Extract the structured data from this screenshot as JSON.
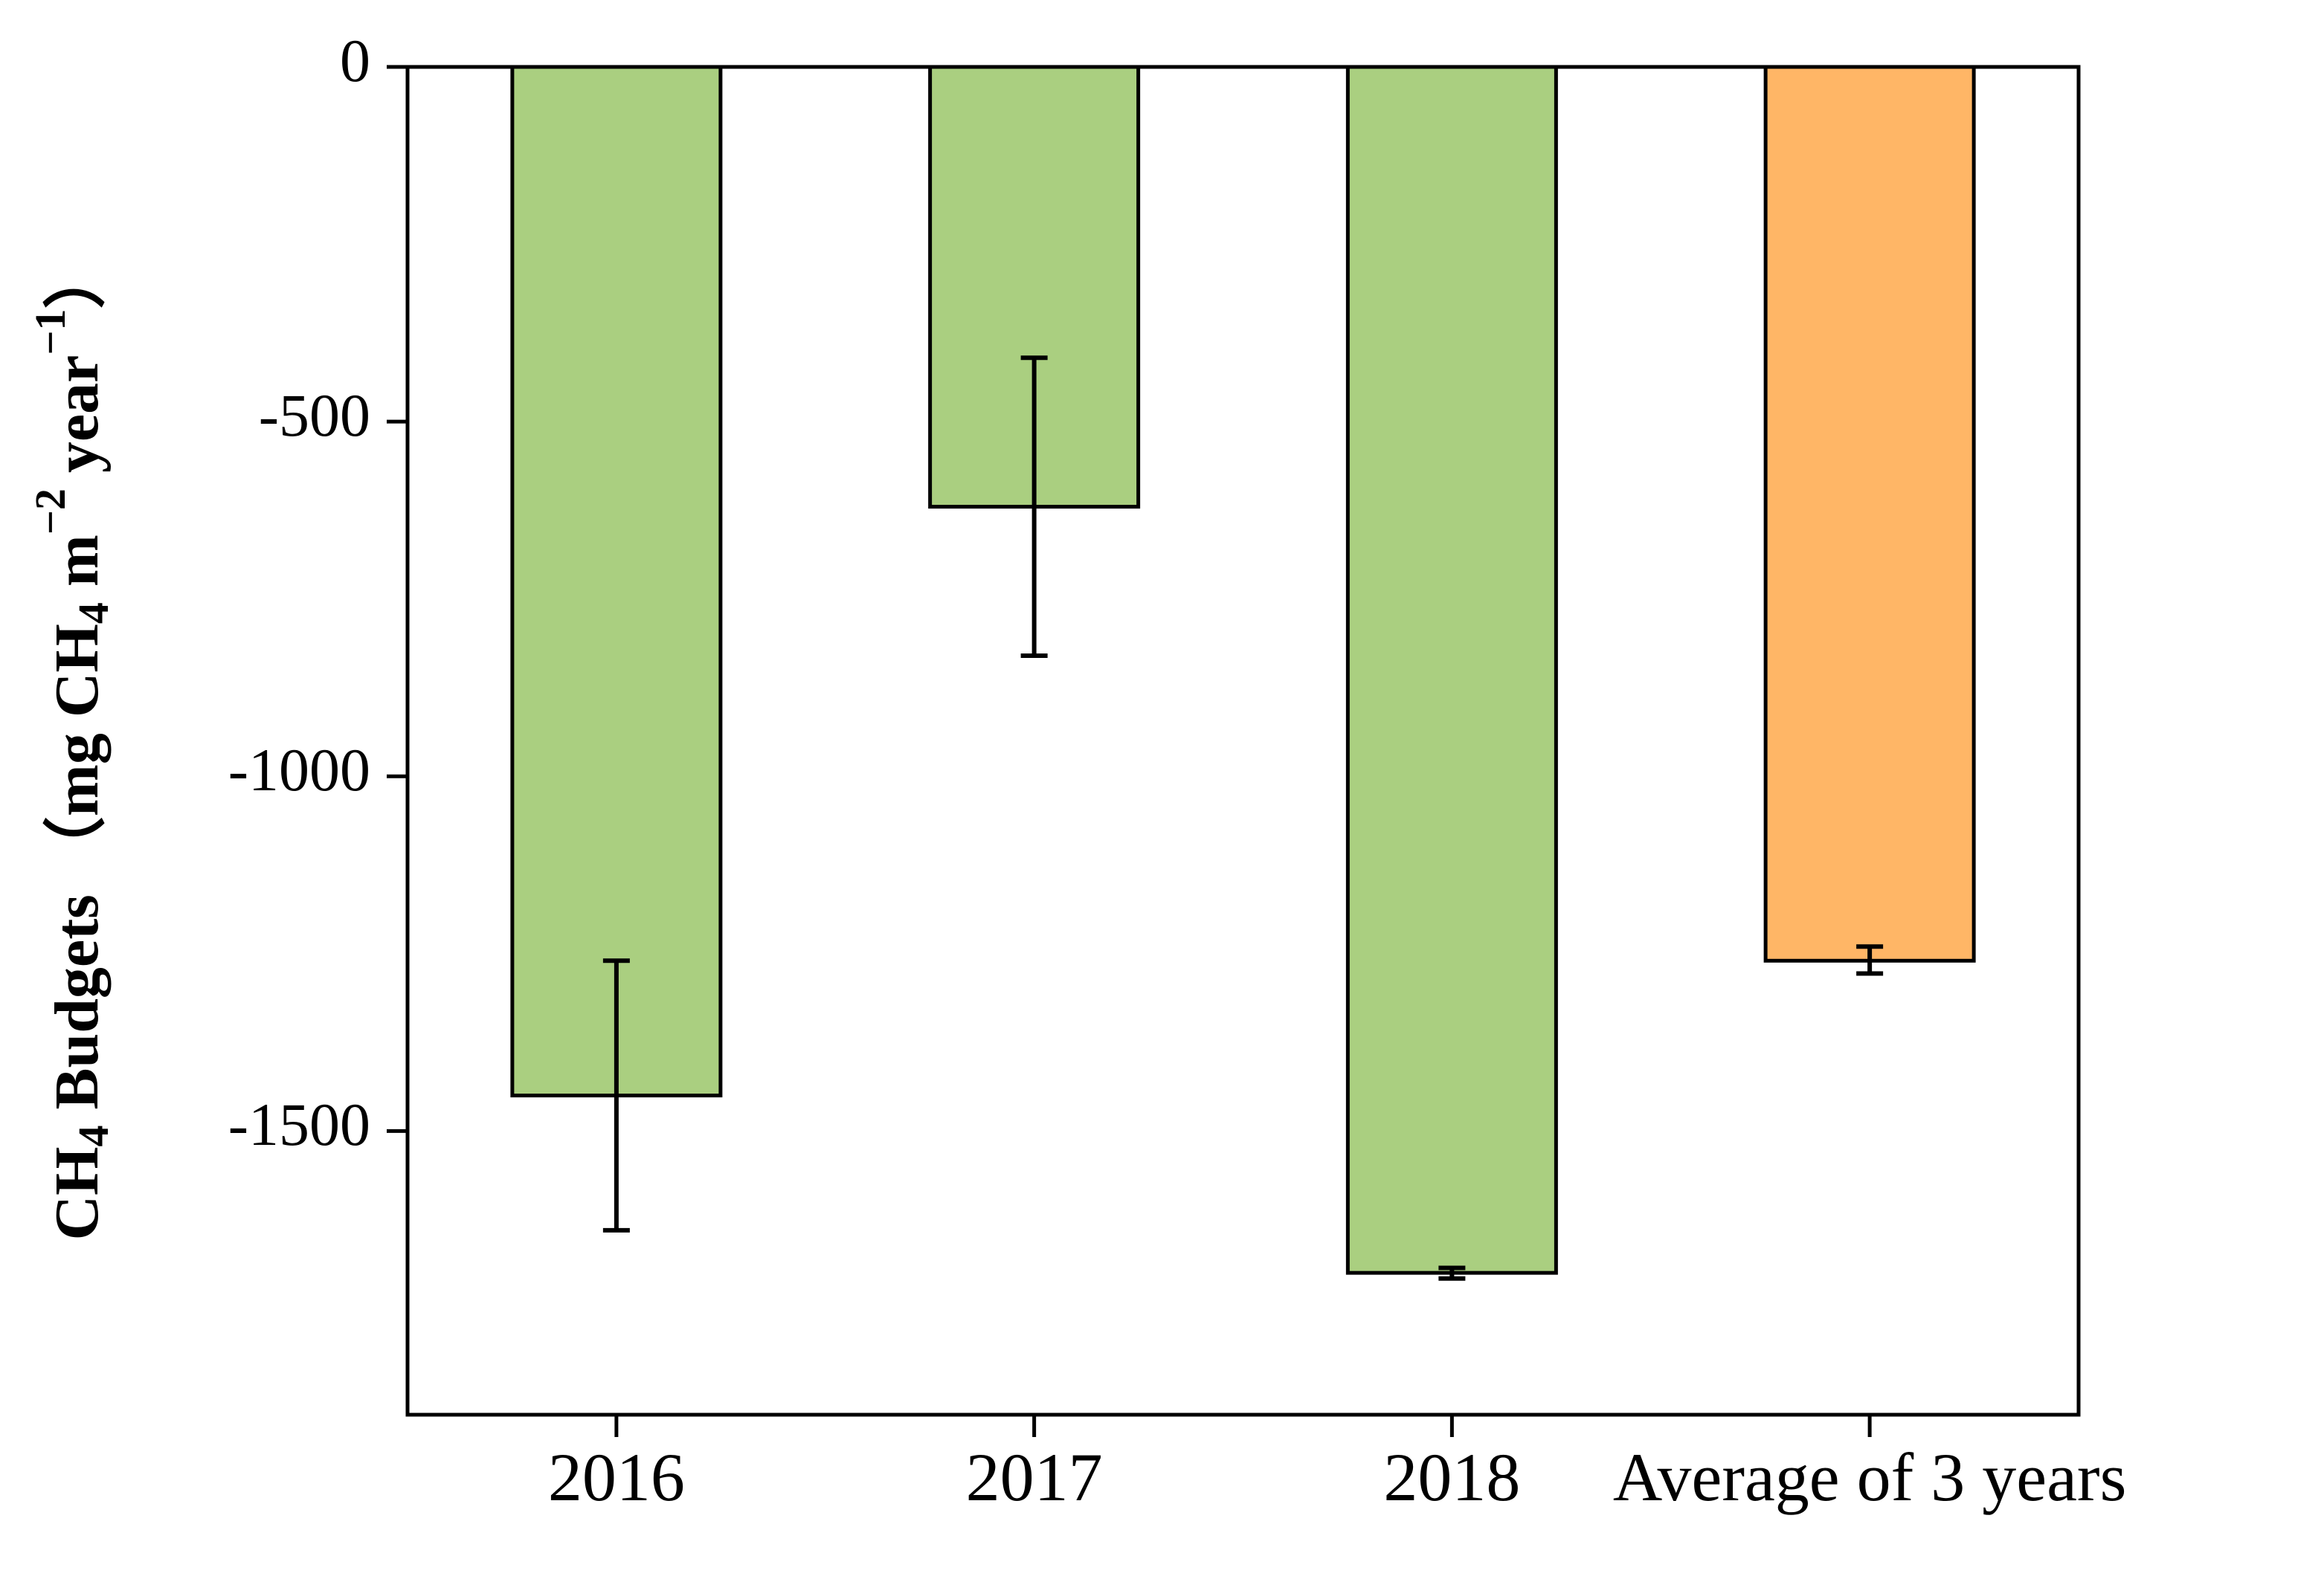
{
  "chart_data": {
    "type": "bar",
    "title": "",
    "xlabel": "",
    "ylabel": {
      "prefix": "CH",
      "prefix_sub": "4",
      "main": " Budgets （mg CH",
      "main_sub": "4",
      "unit_m": " m",
      "sup_m": "−2",
      "unit_year": " year",
      "sup_year": "−1",
      "close": "）"
    },
    "ylim": [
      -1900,
      0
    ],
    "yticks": [
      0,
      -500,
      -1000,
      -1500
    ],
    "ytick_labels": [
      "0",
      "-500",
      "-1000",
      "-1500"
    ],
    "grid": false,
    "legend": "none",
    "categories": [
      "2016",
      "2017",
      "2018",
      "Average of 3 years"
    ],
    "values": [
      -1450,
      -620,
      -1700,
      -1260
    ],
    "errors": [
      {
        "low": -1640,
        "high": -1260
      },
      {
        "low": -830,
        "high": -410
      },
      {
        "low": -1708,
        "high": -1693
      },
      {
        "low": -1278,
        "high": -1240
      }
    ],
    "colors": [
      "#aacf80",
      "#aacf80",
      "#aacf80",
      "#ffb666"
    ]
  }
}
